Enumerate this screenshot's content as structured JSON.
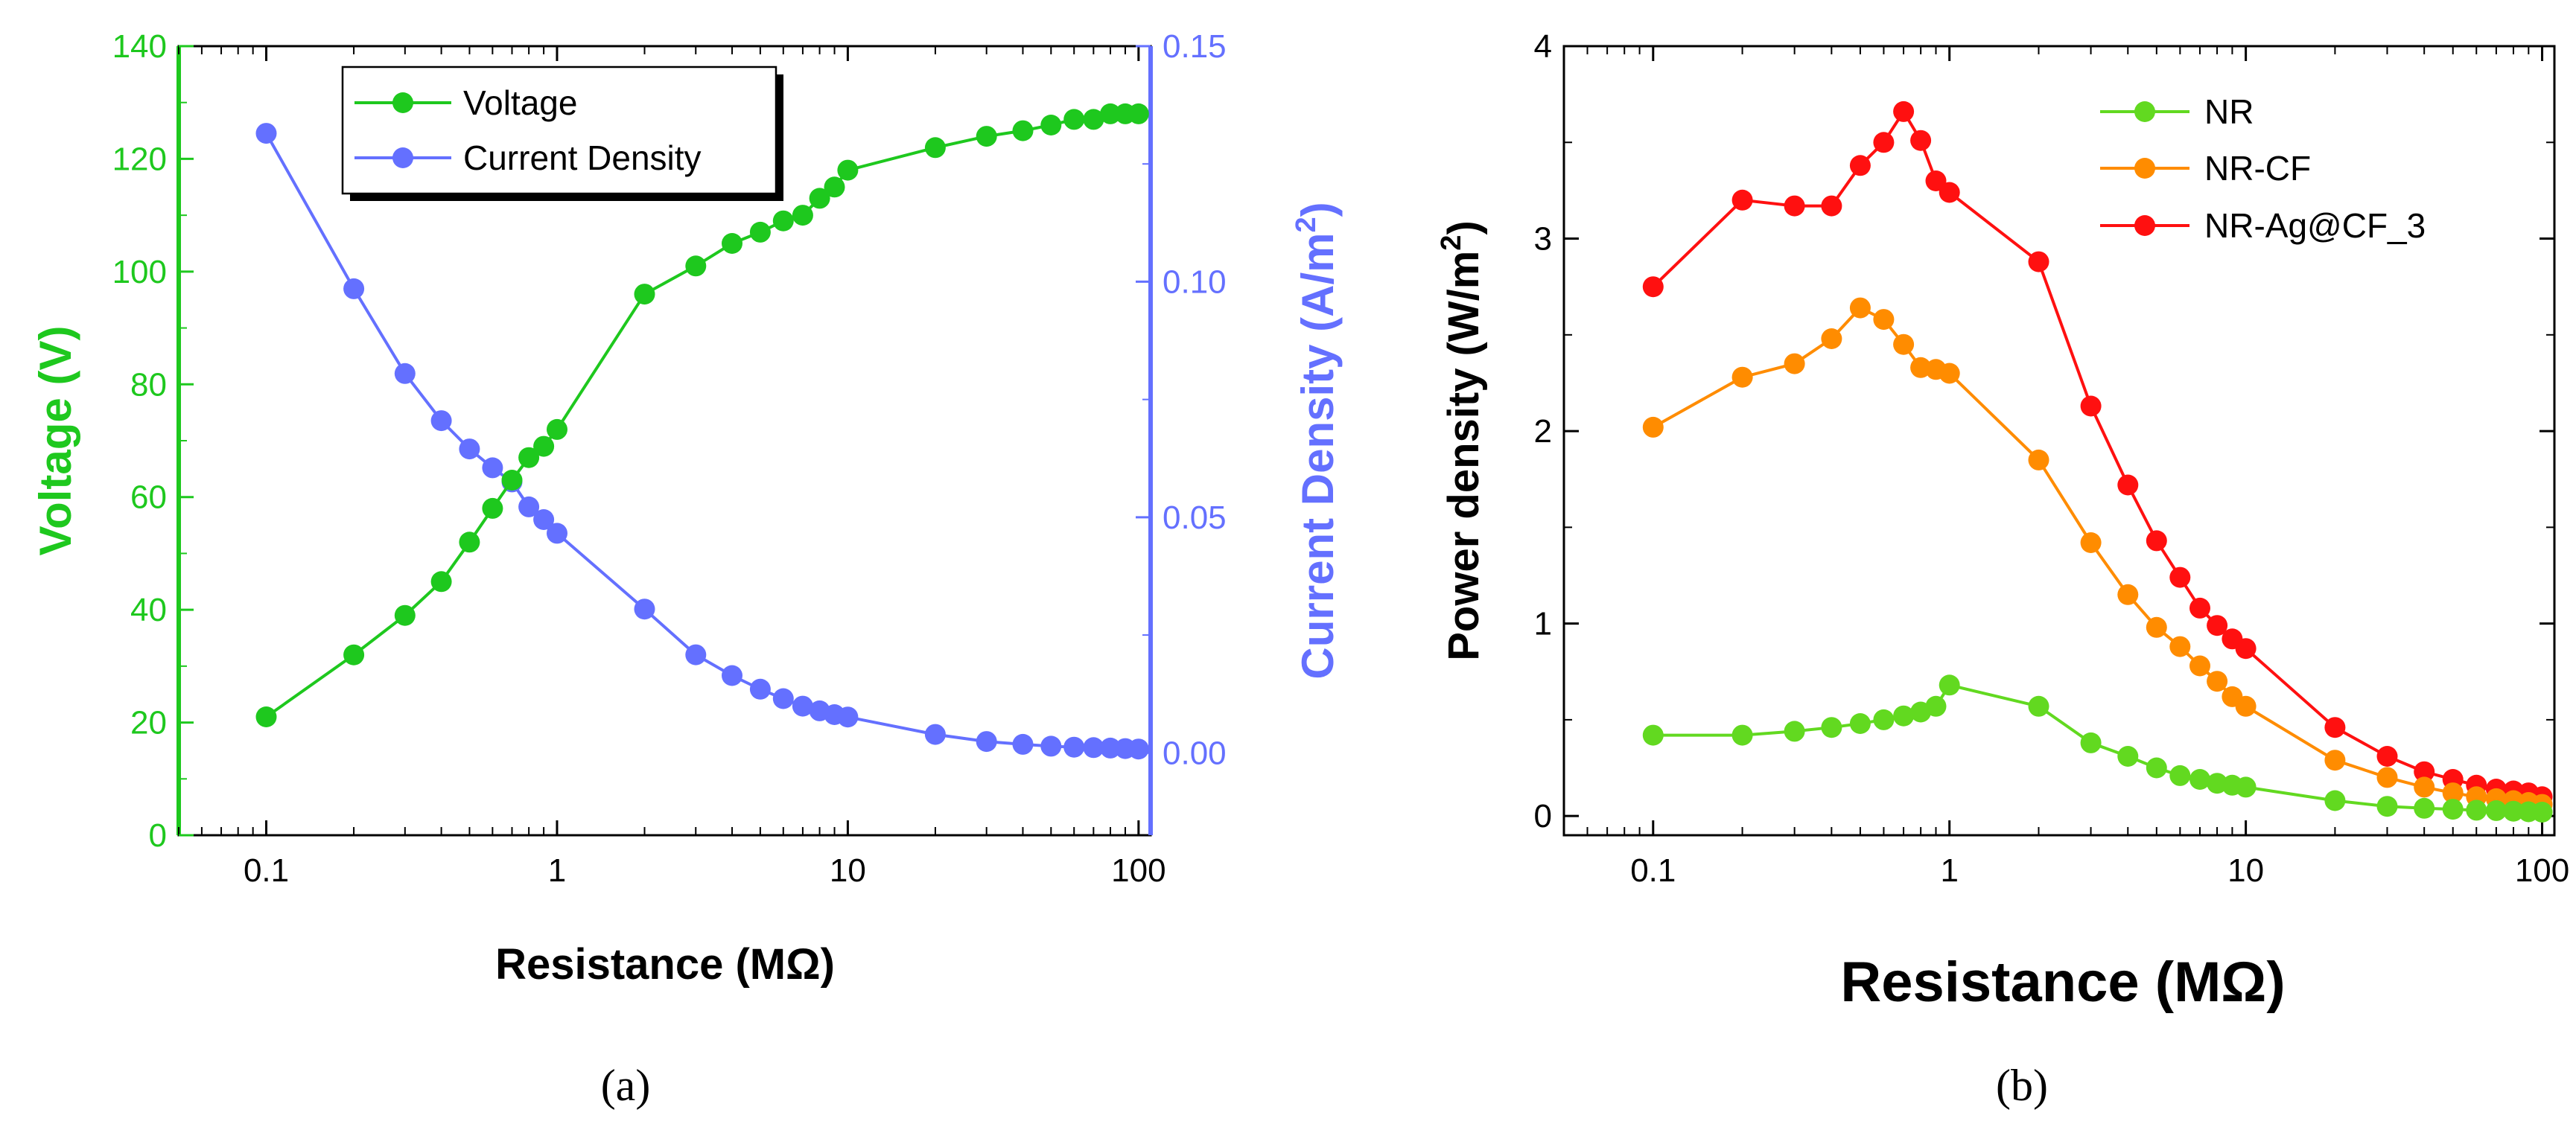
{
  "colors": {
    "voltage": "#1ec81e",
    "current": "#6470ff",
    "nr": "#62d920",
    "nrcf": "#ff8c00",
    "nragcf": "#ff1010"
  },
  "chart_data": [
    {
      "type": "line",
      "panel": "a",
      "caption": "(a)",
      "x_scale": "log",
      "xlabel": "Resistance (MΩ)",
      "x_ticks": [
        "0.1",
        "1",
        "10",
        "100"
      ],
      "left_axis": {
        "label": "Voltage (V)",
        "ylim": [
          0,
          140
        ],
        "ticks": [
          "0",
          "20",
          "40",
          "60",
          "80",
          "100",
          "120",
          "140"
        ]
      },
      "right_axis": {
        "label_main": "Current Density (A/m",
        "label_sup": "2",
        "label_close": ")",
        "ylim": [
          -0.0175,
          0.15
        ],
        "ticks": [
          "0.00",
          "0.05",
          "0.10",
          "0.15"
        ]
      },
      "legend": {
        "position": "top-center",
        "items": [
          "Voltage",
          "Current Density"
        ]
      },
      "x": [
        0.1,
        0.2,
        0.3,
        0.4,
        0.5,
        0.6,
        0.7,
        0.8,
        0.9,
        1,
        2,
        3,
        4,
        5,
        6,
        7,
        8,
        9,
        10,
        20,
        30,
        40,
        50,
        60,
        70,
        80,
        90,
        100
      ],
      "series": [
        {
          "name": "Voltage",
          "axis": "left",
          "values": [
            21,
            32,
            39,
            45,
            52,
            58,
            63,
            67,
            69,
            72,
            96,
            101,
            105,
            107,
            109,
            110,
            113,
            115,
            118,
            122,
            124,
            125,
            126,
            127,
            127,
            128,
            128,
            128
          ]
        },
        {
          "name": "Current Density",
          "axis": "right",
          "values": [
            0.1315,
            0.0985,
            0.0805,
            0.0705,
            0.0645,
            0.0605,
            0.0575,
            0.0522,
            0.0495,
            0.0466,
            0.0305,
            0.0208,
            0.0164,
            0.0135,
            0.0115,
            0.0099,
            0.0089,
            0.0081,
            0.0076,
            0.0039,
            0.0024,
            0.0018,
            0.0014,
            0.0012,
            0.0011,
            0.001,
            0.0009,
            0.0008
          ]
        }
      ]
    },
    {
      "type": "line",
      "panel": "b",
      "caption": "(b)",
      "x_scale": "log",
      "xlabel": "Resistance (MΩ)",
      "x_ticks": [
        "0.1",
        "1",
        "10",
        "100"
      ],
      "ylabel_main": "Power density (W/m",
      "ylabel_sup": "2",
      "ylabel_close": ")",
      "ylim": [
        -0.1,
        4
      ],
      "y_ticks": [
        "0",
        "1",
        "2",
        "3",
        "4"
      ],
      "legend": {
        "position": "top-right",
        "items": [
          "NR",
          "NR-CF",
          "NR-Ag@CF_3"
        ]
      },
      "x": [
        0.1,
        0.2,
        0.3,
        0.4,
        0.5,
        0.6,
        0.7,
        0.8,
        0.9,
        1,
        2,
        3,
        4,
        5,
        6,
        7,
        8,
        9,
        10,
        20,
        30,
        40,
        50,
        60,
        70,
        80,
        90,
        100
      ],
      "series": [
        {
          "name": "NR",
          "values": [
            0.42,
            0.42,
            0.44,
            0.46,
            0.48,
            0.5,
            0.52,
            0.54,
            0.57,
            0.68,
            0.57,
            0.38,
            0.31,
            0.25,
            0.21,
            0.19,
            0.17,
            0.16,
            0.15,
            0.08,
            0.05,
            0.04,
            0.035,
            0.03,
            0.028,
            0.025,
            0.022,
            0.02
          ]
        },
        {
          "name": "NR-CF",
          "values": [
            2.02,
            2.28,
            2.35,
            2.48,
            2.64,
            2.58,
            2.45,
            2.33,
            2.32,
            2.3,
            1.85,
            1.42,
            1.15,
            0.98,
            0.88,
            0.78,
            0.7,
            0.62,
            0.57,
            0.29,
            0.2,
            0.15,
            0.12,
            0.1,
            0.09,
            0.08,
            0.07,
            0.06
          ]
        },
        {
          "name": "NR-Ag@CF_3",
          "values": [
            2.75,
            3.2,
            3.17,
            3.17,
            3.38,
            3.5,
            3.66,
            3.51,
            3.3,
            3.24,
            2.88,
            2.13,
            1.72,
            1.43,
            1.24,
            1.08,
            0.99,
            0.92,
            0.87,
            0.46,
            0.31,
            0.23,
            0.19,
            0.16,
            0.14,
            0.13,
            0.12,
            0.1
          ]
        }
      ]
    }
  ]
}
